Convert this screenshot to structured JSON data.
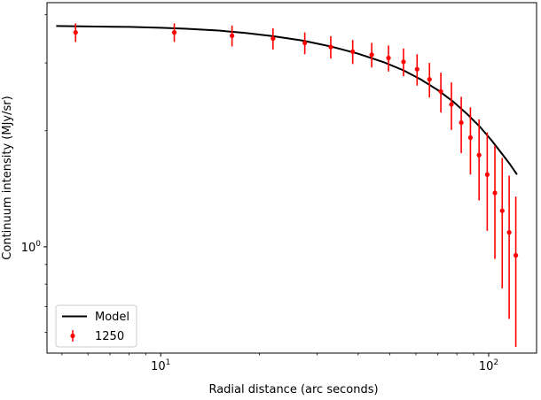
{
  "chart_data": {
    "type": "scatter",
    "xlabel": "Radial distance (arc seconds)",
    "ylabel": "Continuum intensity (MJy/sr)",
    "xscale": "log",
    "yscale": "log",
    "xlim": [
      4.5,
      140
    ],
    "ylim": [
      0.53,
      4.3
    ],
    "x_ticks": [
      {
        "value": 10,
        "mantissa": "10",
        "exp": "1"
      },
      {
        "value": 100,
        "mantissa": "10",
        "exp": "2"
      }
    ],
    "y_ticks": [
      {
        "value": 1,
        "mantissa": "10",
        "exp": "0"
      }
    ],
    "grid": false,
    "legend_position": "lower-left",
    "series": [
      {
        "name": "1250",
        "kind": "errorbar",
        "color": "#ff0000",
        "x": [
          5.5,
          11,
          16.5,
          22,
          27.5,
          33,
          38.5,
          44,
          49.5,
          55,
          60.5,
          66,
          71.5,
          77,
          82.5,
          88,
          93.5,
          99,
          104.5,
          110,
          115.5,
          121
        ],
        "y": [
          3.6,
          3.6,
          3.53,
          3.47,
          3.38,
          3.3,
          3.21,
          3.15,
          3.09,
          3.02,
          2.89,
          2.72,
          2.53,
          2.34,
          2.1,
          1.92,
          1.73,
          1.54,
          1.38,
          1.24,
          1.09,
          0.95
        ],
        "yerr_low": [
          0.2,
          0.2,
          0.22,
          0.22,
          0.22,
          0.22,
          0.23,
          0.23,
          0.24,
          0.25,
          0.27,
          0.28,
          0.3,
          0.33,
          0.35,
          0.38,
          0.41,
          0.44,
          0.45,
          0.46,
          0.44,
          0.4
        ],
        "yerr_high": [
          0.2,
          0.2,
          0.22,
          0.22,
          0.22,
          0.22,
          0.23,
          0.23,
          0.24,
          0.25,
          0.27,
          0.28,
          0.3,
          0.33,
          0.35,
          0.38,
          0.41,
          0.44,
          0.45,
          0.46,
          0.44,
          0.4
        ]
      },
      {
        "name": "Model",
        "kind": "line",
        "color": "#000000",
        "x": [
          4.8,
          6,
          8,
          10,
          12,
          15,
          18,
          22,
          27,
          33,
          40,
          48,
          55,
          62,
          70,
          78,
          86,
          94,
          102,
          110,
          116,
          122
        ],
        "y": [
          3.74,
          3.73,
          3.72,
          3.7,
          3.68,
          3.64,
          3.59,
          3.52,
          3.43,
          3.31,
          3.17,
          3.01,
          2.87,
          2.72,
          2.55,
          2.38,
          2.21,
          2.05,
          1.89,
          1.74,
          1.64,
          1.54
        ]
      }
    ]
  }
}
